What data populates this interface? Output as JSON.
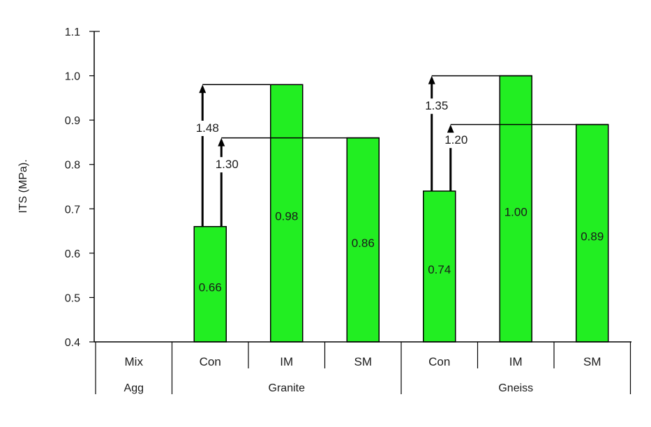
{
  "chart_data": {
    "type": "bar",
    "ylabel": "ITS (MPa).",
    "ylim": [
      0.4,
      1.1
    ],
    "yticks": [
      "0.4",
      "0.5",
      "0.6",
      "0.7",
      "0.8",
      "0.9",
      "1.0",
      "1.1"
    ],
    "grid": false,
    "row1_labels": [
      "Mix",
      "Con",
      "IM",
      "SM",
      "Con",
      "IM",
      "SM"
    ],
    "row2_labels": [
      "Agg",
      "Granite",
      "Gneiss"
    ],
    "categories": [
      "Granite Con",
      "Granite IM",
      "Granite SM",
      "Gneiss Con",
      "Gneiss IM",
      "Gneiss SM"
    ],
    "values": [
      0.66,
      0.98,
      0.86,
      0.74,
      1.0,
      0.89
    ],
    "data_labels": [
      "0.66",
      "0.98",
      "0.86",
      "0.74",
      "1.00",
      "0.89"
    ],
    "bar_color": "#22ee22",
    "annotations": [
      {
        "text": "1.48",
        "from_category": "Granite Con",
        "to_category": "Granite IM",
        "from_value": 0.66,
        "to_value": 0.98
      },
      {
        "text": "1.30",
        "from_category": "Granite Con",
        "to_category": "Granite SM",
        "from_value": 0.66,
        "to_value": 0.86
      },
      {
        "text": "1.35",
        "from_category": "Gneiss Con",
        "to_category": "Gneiss IM",
        "from_value": 0.74,
        "to_value": 1.0
      },
      {
        "text": "1.20",
        "from_category": "Gneiss Con",
        "to_category": "Gneiss SM",
        "from_value": 0.74,
        "to_value": 0.89
      }
    ]
  }
}
